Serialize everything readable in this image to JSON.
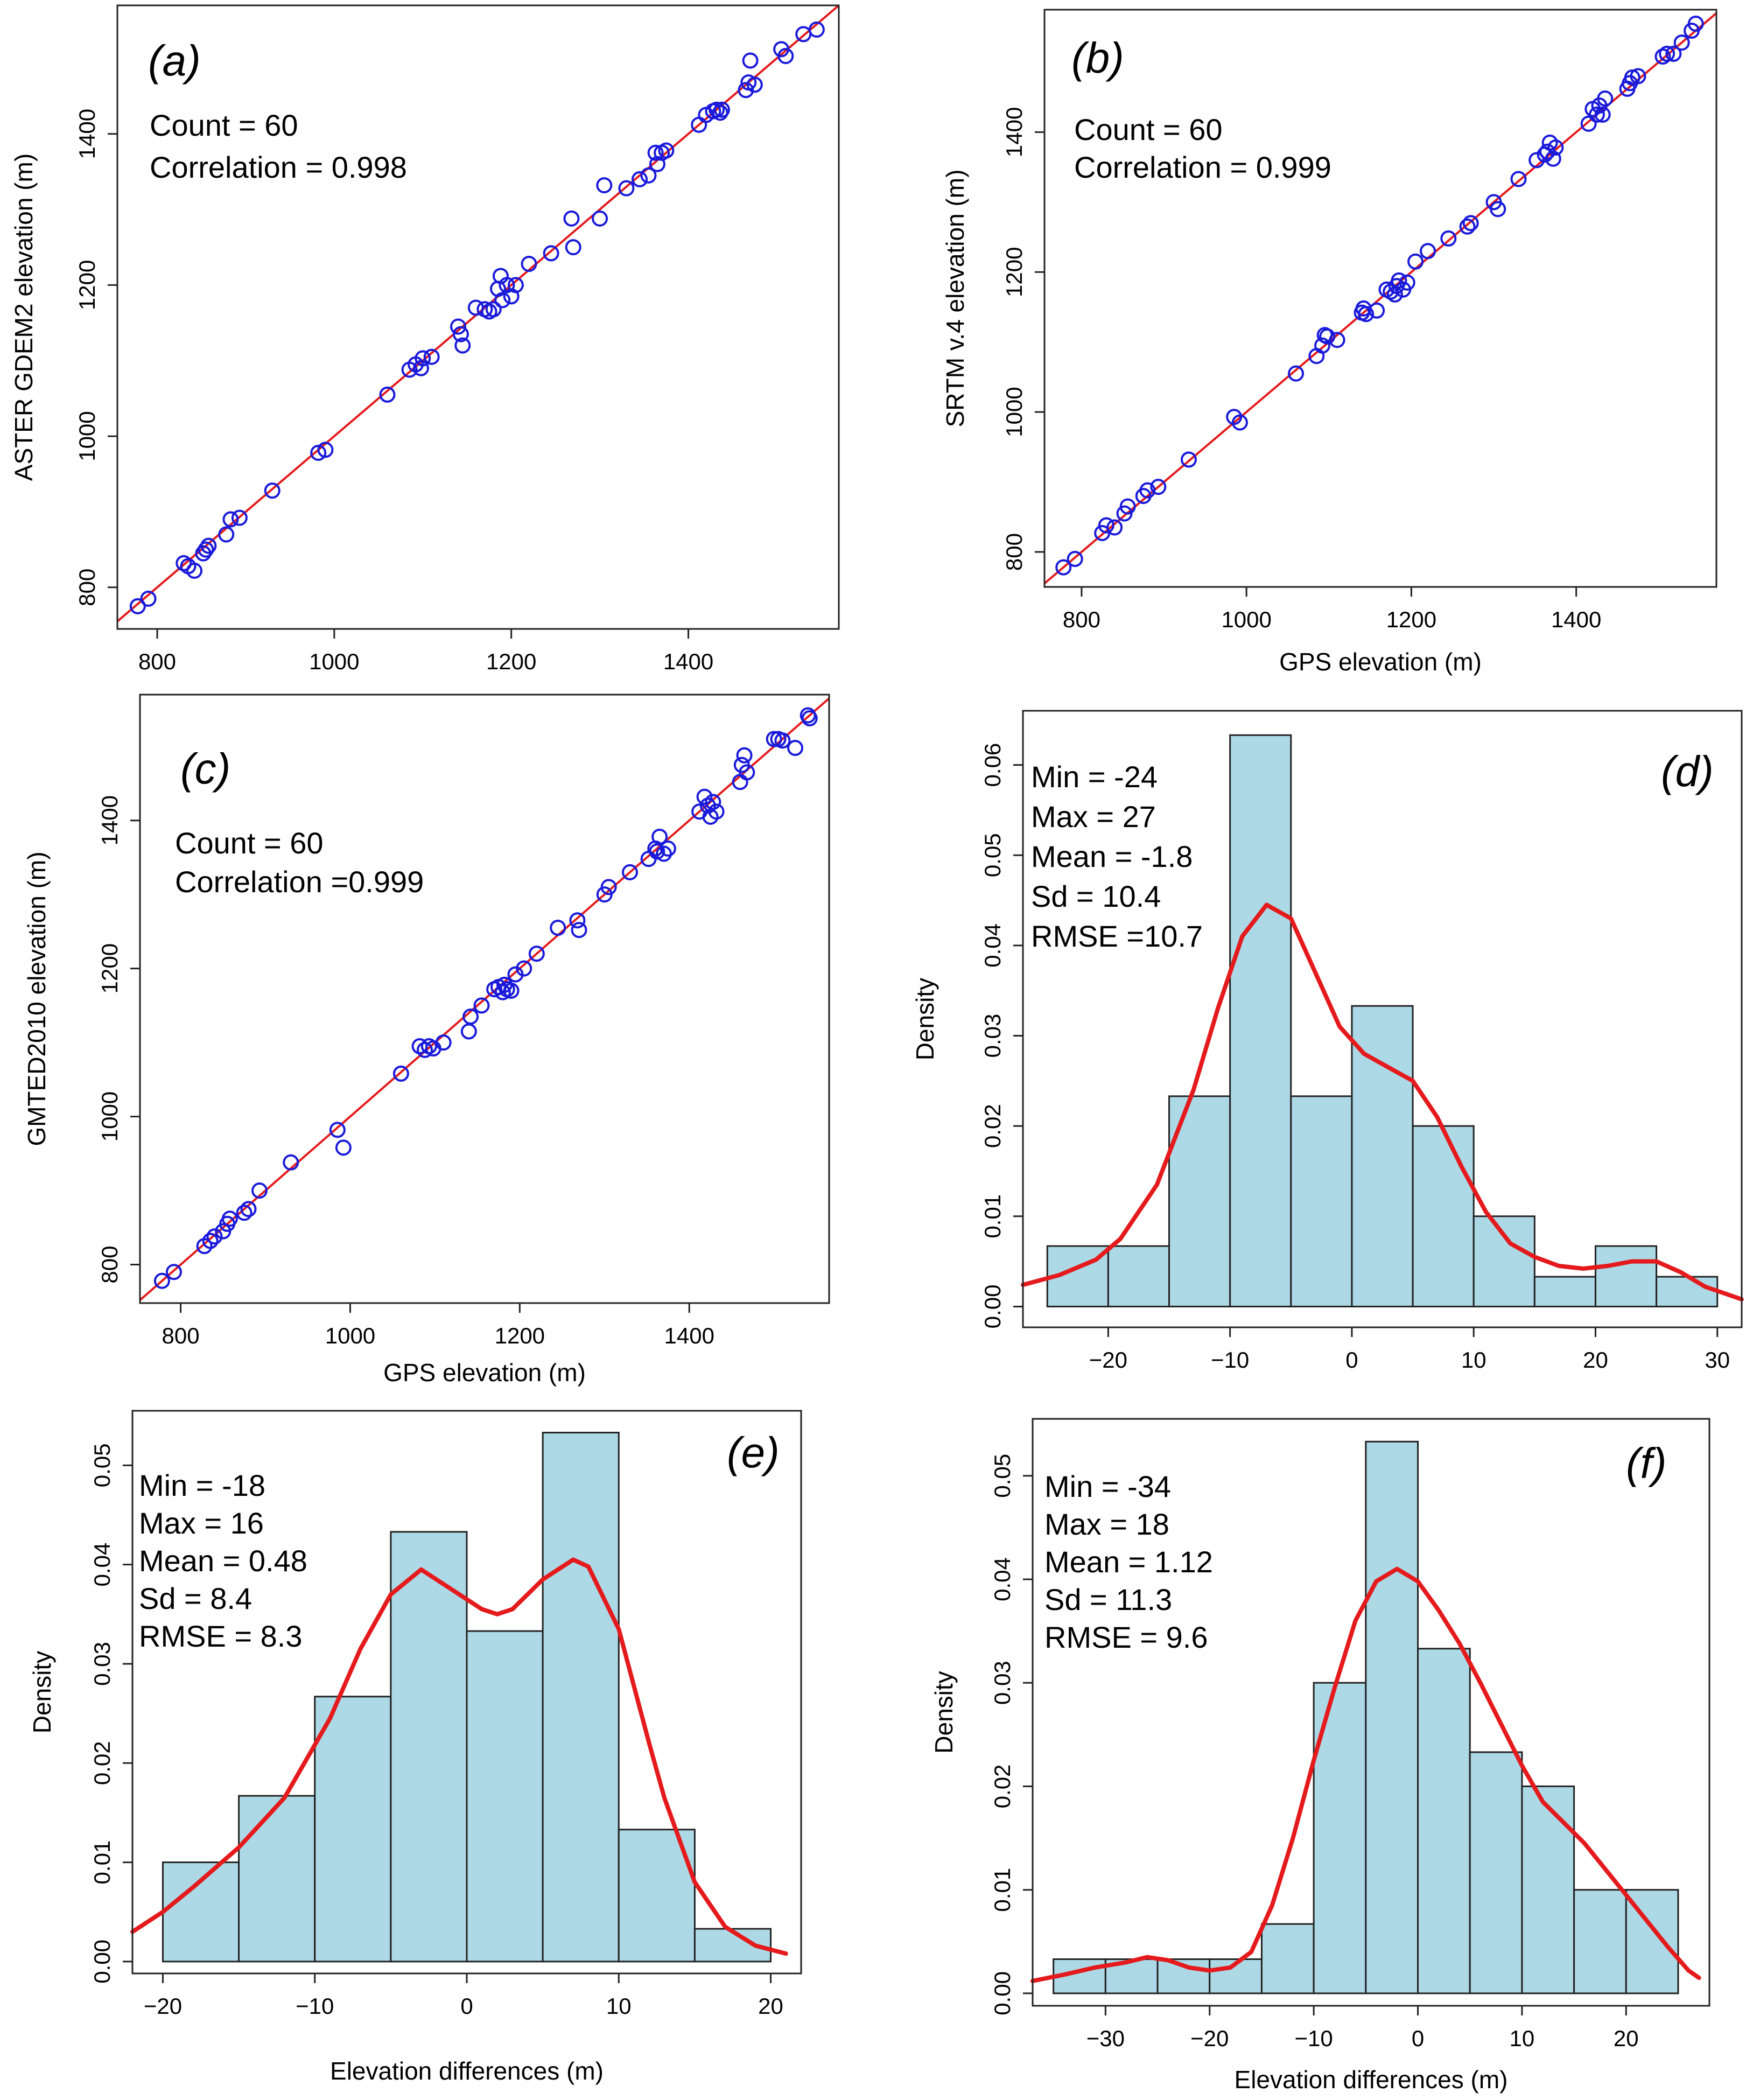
{
  "chart_data": [
    {
      "id": "a",
      "type": "scatter",
      "panel_label": "(a)",
      "xlabel": "",
      "ylabel": "ASTER GDEM2 elevation (m)",
      "xlim": [
        755,
        1570
      ],
      "ylim": [
        745,
        1570
      ],
      "xticks": [
        800,
        1000,
        1200,
        1400
      ],
      "yticks": [
        800,
        1000,
        1200,
        1400
      ],
      "xtick_labels": [
        "800",
        "1000",
        "1200",
        "1400"
      ],
      "ytick_labels": [
        "800",
        "1000",
        "1200",
        "1400"
      ],
      "reference_line": "1:1",
      "stats": [
        "Count = 60",
        "Correlation = 0.998"
      ],
      "points": [
        [
          778,
          775
        ],
        [
          790,
          785
        ],
        [
          830,
          832
        ],
        [
          835,
          828
        ],
        [
          842,
          822
        ],
        [
          852,
          845
        ],
        [
          855,
          850
        ],
        [
          858,
          855
        ],
        [
          878,
          870
        ],
        [
          883,
          890
        ],
        [
          893,
          892
        ],
        [
          930,
          928
        ],
        [
          982,
          978
        ],
        [
          990,
          982
        ],
        [
          1060,
          1055
        ],
        [
          1085,
          1088
        ],
        [
          1092,
          1095
        ],
        [
          1098,
          1090
        ],
        [
          1100,
          1103
        ],
        [
          1110,
          1105
        ],
        [
          1140,
          1145
        ],
        [
          1143,
          1135
        ],
        [
          1145,
          1120
        ],
        [
          1160,
          1170
        ],
        [
          1170,
          1168
        ],
        [
          1175,
          1165
        ],
        [
          1180,
          1168
        ],
        [
          1185,
          1195
        ],
        [
          1188,
          1212
        ],
        [
          1190,
          1180
        ],
        [
          1195,
          1200
        ],
        [
          1200,
          1185
        ],
        [
          1205,
          1200
        ],
        [
          1220,
          1228
        ],
        [
          1245,
          1242
        ],
        [
          1268,
          1288
        ],
        [
          1270,
          1250
        ],
        [
          1300,
          1288
        ],
        [
          1305,
          1332
        ],
        [
          1330,
          1328
        ],
        [
          1345,
          1340
        ],
        [
          1355,
          1345
        ],
        [
          1363,
          1375
        ],
        [
          1365,
          1360
        ],
        [
          1370,
          1375
        ],
        [
          1375,
          1378
        ],
        [
          1412,
          1412
        ],
        [
          1420,
          1425
        ],
        [
          1428,
          1430
        ],
        [
          1432,
          1432
        ],
        [
          1436,
          1428
        ],
        [
          1438,
          1432
        ],
        [
          1465,
          1458
        ],
        [
          1468,
          1468
        ],
        [
          1470,
          1497
        ],
        [
          1475,
          1465
        ],
        [
          1505,
          1512
        ],
        [
          1510,
          1503
        ],
        [
          1530,
          1532
        ],
        [
          1545,
          1538
        ]
      ]
    },
    {
      "id": "b",
      "type": "scatter",
      "panel_label": "(b)",
      "xlabel": "GPS elevation (m)",
      "ylabel": "SRTM v.4 elevation (m)",
      "xlim": [
        755,
        1570
      ],
      "ylim": [
        750,
        1575
      ],
      "xticks": [
        800,
        1000,
        1200,
        1400
      ],
      "yticks": [
        800,
        1000,
        1200,
        1400
      ],
      "xtick_labels": [
        "800",
        "1000",
        "1200",
        "1400"
      ],
      "ytick_labels": [
        "800",
        "1000",
        "1200",
        "1400"
      ],
      "reference_line": "1:1",
      "stats": [
        "Count = 60",
        "Correlation = 0.999"
      ],
      "points": [
        [
          778,
          778
        ],
        [
          792,
          790
        ],
        [
          825,
          827
        ],
        [
          830,
          838
        ],
        [
          840,
          835
        ],
        [
          852,
          855
        ],
        [
          856,
          865
        ],
        [
          875,
          880
        ],
        [
          880,
          888
        ],
        [
          893,
          893
        ],
        [
          930,
          932
        ],
        [
          985,
          993
        ],
        [
          992,
          985
        ],
        [
          1060,
          1055
        ],
        [
          1085,
          1080
        ],
        [
          1092,
          1095
        ],
        [
          1095,
          1110
        ],
        [
          1098,
          1108
        ],
        [
          1110,
          1103
        ],
        [
          1140,
          1142
        ],
        [
          1142,
          1148
        ],
        [
          1145,
          1140
        ],
        [
          1158,
          1145
        ],
        [
          1170,
          1175
        ],
        [
          1175,
          1172
        ],
        [
          1180,
          1168
        ],
        [
          1182,
          1180
        ],
        [
          1185,
          1188
        ],
        [
          1190,
          1175
        ],
        [
          1195,
          1185
        ],
        [
          1205,
          1215
        ],
        [
          1220,
          1230
        ],
        [
          1245,
          1248
        ],
        [
          1268,
          1265
        ],
        [
          1272,
          1270
        ],
        [
          1300,
          1300
        ],
        [
          1305,
          1290
        ],
        [
          1330,
          1333
        ],
        [
          1352,
          1360
        ],
        [
          1362,
          1368
        ],
        [
          1365,
          1372
        ],
        [
          1368,
          1385
        ],
        [
          1372,
          1362
        ],
        [
          1375,
          1378
        ],
        [
          1415,
          1412
        ],
        [
          1420,
          1433
        ],
        [
          1425,
          1425
        ],
        [
          1428,
          1438
        ],
        [
          1432,
          1425
        ],
        [
          1435,
          1448
        ],
        [
          1462,
          1462
        ],
        [
          1465,
          1470
        ],
        [
          1468,
          1478
        ],
        [
          1475,
          1480
        ],
        [
          1505,
          1508
        ],
        [
          1510,
          1512
        ],
        [
          1518,
          1512
        ],
        [
          1528,
          1528
        ],
        [
          1540,
          1545
        ],
        [
          1545,
          1555
        ]
      ]
    },
    {
      "id": "c",
      "type": "scatter",
      "panel_label": "(c)",
      "xlabel": "GPS elevation (m)",
      "ylabel": "GMTED2010 elevation (m)",
      "xlim": [
        752,
        1565
      ],
      "ylim": [
        748,
        1570
      ],
      "xticks": [
        800,
        1000,
        1200,
        1400
      ],
      "yticks": [
        800,
        1000,
        1200,
        1400
      ],
      "xtick_labels": [
        "800",
        "1000",
        "1200",
        "1400"
      ],
      "ytick_labels": [
        "800",
        "1000",
        "1200",
        "1400"
      ],
      "reference_line": "1:1",
      "stats": [
        "Count = 60",
        "Correlation =0.999"
      ],
      "points": [
        [
          778,
          778
        ],
        [
          792,
          790
        ],
        [
          828,
          825
        ],
        [
          835,
          832
        ],
        [
          840,
          838
        ],
        [
          850,
          845
        ],
        [
          855,
          855
        ],
        [
          858,
          862
        ],
        [
          875,
          870
        ],
        [
          880,
          875
        ],
        [
          893,
          900
        ],
        [
          930,
          938
        ],
        [
          985,
          982
        ],
        [
          992,
          958
        ],
        [
          1060,
          1058
        ],
        [
          1082,
          1095
        ],
        [
          1088,
          1090
        ],
        [
          1093,
          1095
        ],
        [
          1098,
          1092
        ],
        [
          1110,
          1100
        ],
        [
          1140,
          1115
        ],
        [
          1142,
          1135
        ],
        [
          1155,
          1150
        ],
        [
          1170,
          1172
        ],
        [
          1175,
          1175
        ],
        [
          1180,
          1168
        ],
        [
          1182,
          1178
        ],
        [
          1185,
          1172
        ],
        [
          1190,
          1170
        ],
        [
          1195,
          1192
        ],
        [
          1205,
          1200
        ],
        [
          1220,
          1220
        ],
        [
          1245,
          1255
        ],
        [
          1268,
          1265
        ],
        [
          1270,
          1252
        ],
        [
          1300,
          1300
        ],
        [
          1305,
          1310
        ],
        [
          1330,
          1330
        ],
        [
          1352,
          1348
        ],
        [
          1360,
          1362
        ],
        [
          1362,
          1358
        ],
        [
          1365,
          1378
        ],
        [
          1370,
          1355
        ],
        [
          1375,
          1362
        ],
        [
          1412,
          1412
        ],
        [
          1418,
          1432
        ],
        [
          1422,
          1420
        ],
        [
          1425,
          1405
        ],
        [
          1428,
          1425
        ],
        [
          1432,
          1412
        ],
        [
          1460,
          1452
        ],
        [
          1462,
          1475
        ],
        [
          1465,
          1488
        ],
        [
          1468,
          1465
        ],
        [
          1500,
          1510
        ],
        [
          1505,
          1510
        ],
        [
          1510,
          1508
        ],
        [
          1525,
          1498
        ],
        [
          1540,
          1542
        ],
        [
          1542,
          1538
        ]
      ]
    },
    {
      "id": "d",
      "type": "histogram",
      "panel_label": "(d)",
      "xlabel": "",
      "ylabel": "Density",
      "xlim": [
        -27,
        32
      ],
      "ylim": [
        -0.0023,
        0.066
      ],
      "xticks": [
        -20,
        -10,
        0,
        10,
        20,
        30
      ],
      "yticks": [
        0,
        0.01,
        0.02,
        0.03,
        0.04,
        0.05,
        0.06
      ],
      "xtick_labels": [
        "−20",
        "−10",
        "0",
        "10",
        "20",
        "30"
      ],
      "ytick_labels": [
        "0.00",
        "0.01",
        "0.02",
        "0.03",
        "0.04",
        "0.05",
        "0.06"
      ],
      "bin_edges": [
        -25,
        -20,
        -15,
        -10,
        -5,
        0,
        5,
        10,
        15,
        20,
        25,
        30
      ],
      "values": [
        0.0067,
        0.0067,
        0.0233,
        0.0633,
        0.0233,
        0.0333,
        0.02,
        0.01,
        0.0033,
        0.0067,
        0.0033
      ],
      "stats": [
        "Min = -24",
        "Max = 27",
        "Mean = -1.8",
        "Sd = 10.4",
        "RMSE =10.7"
      ],
      "density_curve": [
        [
          -27,
          0.0024
        ],
        [
          -24,
          0.0035
        ],
        [
          -21,
          0.0052
        ],
        [
          -19,
          0.0075
        ],
        [
          -16,
          0.0135
        ],
        [
          -13,
          0.024
        ],
        [
          -11,
          0.033
        ],
        [
          -9,
          0.041
        ],
        [
          -7,
          0.0445
        ],
        [
          -5,
          0.043
        ],
        [
          -3,
          0.037
        ],
        [
          -1,
          0.031
        ],
        [
          1,
          0.028
        ],
        [
          3,
          0.0265
        ],
        [
          5,
          0.025
        ],
        [
          7,
          0.021
        ],
        [
          9,
          0.0155
        ],
        [
          11,
          0.0105
        ],
        [
          13,
          0.007
        ],
        [
          15,
          0.0055
        ],
        [
          17,
          0.0045
        ],
        [
          19,
          0.0042
        ],
        [
          21,
          0.0045
        ],
        [
          23,
          0.005
        ],
        [
          25,
          0.005
        ],
        [
          27,
          0.0038
        ],
        [
          29,
          0.0022
        ],
        [
          32,
          0.0008
        ]
      ]
    },
    {
      "id": "e",
      "type": "histogram",
      "panel_label": "(e)",
      "xlabel": "Elevation differences (m)",
      "ylabel": "Density",
      "xlim": [
        -22,
        22
      ],
      "ylim": [
        -0.0012,
        0.0555
      ],
      "xticks": [
        -20,
        -10,
        0,
        10,
        20
      ],
      "yticks": [
        0,
        0.01,
        0.02,
        0.03,
        0.04,
        0.05
      ],
      "xtick_labels": [
        "−20",
        "−10",
        "0",
        "10",
        "20"
      ],
      "ytick_labels": [
        "0.00",
        "0.01",
        "0.02",
        "0.03",
        "0.04",
        "0.05"
      ],
      "bin_edges": [
        -20,
        -15,
        -10,
        -5,
        0,
        5,
        10,
        15,
        20
      ],
      "values": [
        0.01,
        0.0167,
        0.0267,
        0.0433,
        0.0333,
        0.0533,
        0.0133,
        0.0033
      ],
      "stats": [
        "Min = -18",
        "Max = 16",
        "Mean = 0.48",
        "Sd = 8.4",
        "RMSE = 8.3"
      ],
      "density_curve": [
        [
          -22,
          0.003
        ],
        [
          -20,
          0.005
        ],
        [
          -18,
          0.0075
        ],
        [
          -15,
          0.0115
        ],
        [
          -12,
          0.0165
        ],
        [
          -9,
          0.0245
        ],
        [
          -7,
          0.0315
        ],
        [
          -5,
          0.037
        ],
        [
          -3,
          0.0395
        ],
        [
          -1,
          0.0375
        ],
        [
          1,
          0.0355
        ],
        [
          2,
          0.035
        ],
        [
          3,
          0.0355
        ],
        [
          5,
          0.0385
        ],
        [
          7,
          0.0405
        ],
        [
          8,
          0.0398
        ],
        [
          10,
          0.0335
        ],
        [
          12,
          0.022
        ],
        [
          13,
          0.0165
        ],
        [
          15,
          0.008
        ],
        [
          17,
          0.0035
        ],
        [
          19,
          0.0016
        ],
        [
          21,
          0.0008
        ]
      ]
    },
    {
      "id": "f",
      "type": "histogram",
      "panel_label": "(f)",
      "xlabel": "Elevation differences (m)",
      "ylabel": "Density",
      "xlim": [
        -37,
        28
      ],
      "ylim": [
        -0.0012,
        0.0555
      ],
      "xticks": [
        -30,
        -20,
        -10,
        0,
        10,
        20
      ],
      "yticks": [
        0,
        0.01,
        0.02,
        0.03,
        0.04,
        0.05
      ],
      "xtick_labels": [
        "−30",
        "−20",
        "−10",
        "0",
        "10",
        "20"
      ],
      "ytick_labels": [
        "0.00",
        "0.01",
        "0.02",
        "0.03",
        "0.04",
        "0.05"
      ],
      "bin_edges": [
        -35,
        -30,
        -25,
        -20,
        -15,
        -10,
        -5,
        0,
        5,
        10,
        15,
        20,
        25
      ],
      "values": [
        0.0033,
        0.0033,
        0.0033,
        0.0033,
        0.0067,
        0.03,
        0.0533,
        0.0333,
        0.0233,
        0.02,
        0.01,
        0.01
      ],
      "stats": [
        "Min = -34",
        "Max = 18",
        "Mean = 1.12",
        "Sd = 11.3",
        "RMSE = 9.6"
      ],
      "density_curve": [
        [
          -37,
          0.0012
        ],
        [
          -34,
          0.0018
        ],
        [
          -31,
          0.0025
        ],
        [
          -28,
          0.003
        ],
        [
          -26,
          0.0035
        ],
        [
          -24,
          0.0032
        ],
        [
          -22,
          0.0025
        ],
        [
          -20,
          0.0022
        ],
        [
          -18,
          0.0025
        ],
        [
          -16,
          0.004
        ],
        [
          -14,
          0.0085
        ],
        [
          -12,
          0.015
        ],
        [
          -10,
          0.0225
        ],
        [
          -8,
          0.0295
        ],
        [
          -6,
          0.036
        ],
        [
          -4,
          0.0398
        ],
        [
          -2,
          0.041
        ],
        [
          0,
          0.0398
        ],
        [
          2,
          0.037
        ],
        [
          4,
          0.0338
        ],
        [
          6,
          0.03
        ],
        [
          8,
          0.026
        ],
        [
          10,
          0.022
        ],
        [
          12,
          0.0185
        ],
        [
          14,
          0.0165
        ],
        [
          16,
          0.0145
        ],
        [
          18,
          0.012
        ],
        [
          20,
          0.0095
        ],
        [
          22,
          0.007
        ],
        [
          24,
          0.0045
        ],
        [
          26,
          0.0022
        ],
        [
          27,
          0.0015
        ]
      ]
    }
  ]
}
